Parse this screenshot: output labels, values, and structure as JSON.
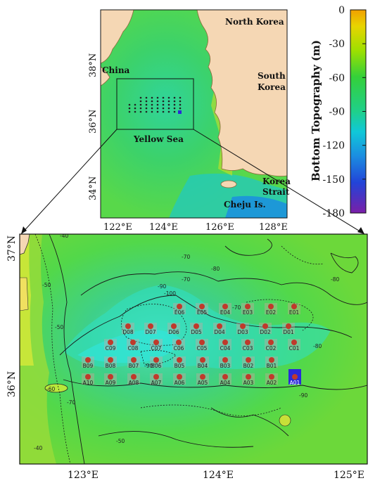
{
  "top_map": {
    "lat_labels": [
      "38°N",
      "36°N",
      "34°N"
    ],
    "lon_labels": [
      "122°E",
      "124°E",
      "126°E",
      "128°E"
    ],
    "place_labels": [
      {
        "id": "north-korea",
        "text": "North Korea"
      },
      {
        "id": "south-korea-1",
        "text": "South"
      },
      {
        "id": "south-korea-2",
        "text": "Korea"
      },
      {
        "id": "china",
        "text": "China"
      },
      {
        "id": "yellow-sea",
        "text": "Yellow Sea"
      },
      {
        "id": "korea-strait-1",
        "text": "Korea"
      },
      {
        "id": "korea-strait-2",
        "text": "Strait"
      },
      {
        "id": "cheju",
        "text": "Cheju Is."
      }
    ]
  },
  "colorbar": {
    "title": "Bottom Topography (m)",
    "ticks": [
      "0",
      "-30",
      "-60",
      "-90",
      "-120",
      "-150",
      "-180"
    ],
    "range": [
      -180,
      0
    ]
  },
  "detail_map": {
    "lat_labels": [
      "37°N",
      "36°N"
    ],
    "lon_labels": [
      "123°E",
      "124°E",
      "125°E"
    ],
    "contour_labels": [
      "-40",
      "-50",
      "-50",
      "-60",
      "-70",
      "-70",
      "-80",
      "-80",
      "-80",
      "-90",
      "-90",
      "-100",
      "-90",
      "-70",
      "-70",
      "-50",
      "-40"
    ],
    "station_rows": [
      {
        "row": "E",
        "stations": [
          "E06",
          "E05",
          "E04",
          "E03",
          "E02",
          "E01"
        ]
      },
      {
        "row": "D",
        "stations": [
          "D08",
          "D07",
          "D06",
          "D05",
          "D04",
          "D03",
          "D02",
          "D01"
        ]
      },
      {
        "row": "C",
        "stations": [
          "C09",
          "C08",
          "C07",
          "C06",
          "C05",
          "C04",
          "C03",
          "C02",
          "C01"
        ]
      },
      {
        "row": "B",
        "stations": [
          "B09",
          "B08",
          "B07",
          "B06",
          "B05",
          "B04",
          "B03",
          "B02",
          "B01"
        ]
      },
      {
        "row": "A",
        "stations": [
          "A10",
          "A09",
          "A08",
          "A07",
          "A06",
          "A05",
          "A04",
          "A03",
          "A02",
          "A01"
        ]
      }
    ],
    "highlighted_station": "A01",
    "station_color": "#c0392b",
    "highlight_color": "#2a2ad8"
  }
}
